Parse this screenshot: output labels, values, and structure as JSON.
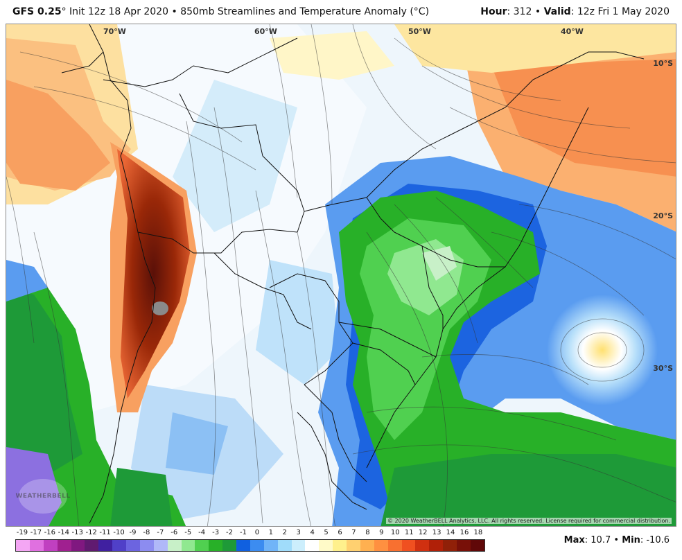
{
  "header": {
    "model": "GFS 0.25",
    "degree_symbol": "°",
    "init": "Init 12z 18 Apr 2020",
    "sep": "•",
    "product": "850mb Streamlines and Temperature Anomaly (°C)",
    "hour_label": "Hour",
    "hour_value": ": 312",
    "valid_label": "Valid",
    "valid_value": ": 12z Fri 1 May 2020"
  },
  "map": {
    "lon_labels": [
      "70°W",
      "60°W",
      "50°W",
      "40°W"
    ],
    "lat_labels": [
      "10°S",
      "20°S",
      "30°S"
    ],
    "copyright": "© 2020 WeatherBELL Analytics, LLC. All rights reserved. License required for commercial distribution.",
    "watermark": "WEATHERBELL"
  },
  "colorbar": {
    "labels": [
      "-19",
      "-17",
      "-16",
      "-14",
      "-13",
      "-12",
      "-11",
      "-10",
      "-9",
      "-8",
      "-7",
      "-6",
      "-5",
      "-4",
      "-3",
      "-2",
      "-1",
      "0",
      "1",
      "2",
      "3",
      "4",
      "5",
      "6",
      "7",
      "8",
      "9",
      "10",
      "11",
      "12",
      "13",
      "14",
      "16",
      "18"
    ],
    "colors": [
      "#f4a6f4",
      "#e070e0",
      "#c040c0",
      "#a02090",
      "#801880",
      "#601a70",
      "#4020a0",
      "#5040c8",
      "#6c64e0",
      "#8c8cf0",
      "#b0b8f8",
      "#c8f0c8",
      "#90e890",
      "#50d050",
      "#28b028",
      "#1e9a38",
      "#1060e0",
      "#3c8cf0",
      "#70b4f8",
      "#a0dcfa",
      "#cceefc",
      "#ffffff",
      "#fffac8",
      "#fff08c",
      "#ffd070",
      "#ffb050",
      "#ff9040",
      "#f87030",
      "#f05020",
      "#d03010",
      "#b02008",
      "#902008",
      "#781008",
      "#600808"
    ]
  },
  "stats": {
    "max_label": "Max",
    "max_value": ": 10.7",
    "sep": "•",
    "min_label": "Min",
    "min_value": ": -10.6"
  }
}
